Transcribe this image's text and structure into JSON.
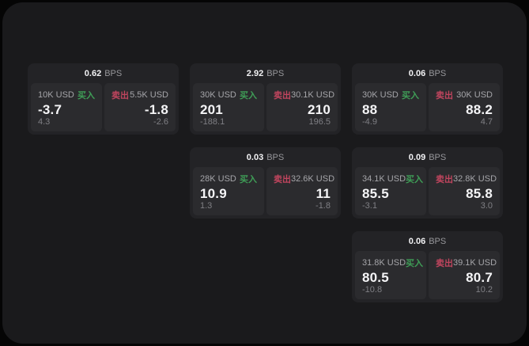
{
  "labels": {
    "bps_unit": "BPS",
    "buy": "买入",
    "sell": "卖出"
  },
  "colors": {
    "buy_green": "#3f9e57",
    "sell_red": "#c0455e",
    "panel_bg": "#1a1a1c",
    "card_bg": "#232326",
    "tile_bg": "#2b2b2e"
  },
  "cards": [
    {
      "bps": "0.62",
      "buy": {
        "amount": "10K USD",
        "price": "-3.7",
        "delta": "4.3"
      },
      "sell": {
        "amount": "5.5K USD",
        "price": "-1.8",
        "delta": "-2.6"
      }
    },
    {
      "bps": "2.92",
      "buy": {
        "amount": "30K USD",
        "price": "201",
        "delta": "-188.1"
      },
      "sell": {
        "amount": "30.1K USD",
        "price": "210",
        "delta": "196.5"
      }
    },
    {
      "bps": "0.06",
      "buy": {
        "amount": "30K USD",
        "price": "88",
        "delta": "-4.9"
      },
      "sell": {
        "amount": "30K USD",
        "price": "88.2",
        "delta": "4.7"
      }
    },
    {
      "bps": "0.03",
      "buy": {
        "amount": "28K USD",
        "price": "10.9",
        "delta": "1.3"
      },
      "sell": {
        "amount": "32.6K USD",
        "price": "11",
        "delta": "-1.8"
      }
    },
    {
      "bps": "0.09",
      "buy": {
        "amount": "34.1K USD",
        "price": "85.5",
        "delta": "-3.1"
      },
      "sell": {
        "amount": "32.8K USD",
        "price": "85.8",
        "delta": "3.0"
      }
    },
    {
      "bps": "0.06",
      "buy": {
        "amount": "31.8K USD",
        "price": "80.5",
        "delta": "-10.8"
      },
      "sell": {
        "amount": "39.1K USD",
        "price": "80.7",
        "delta": "10.2"
      }
    }
  ]
}
